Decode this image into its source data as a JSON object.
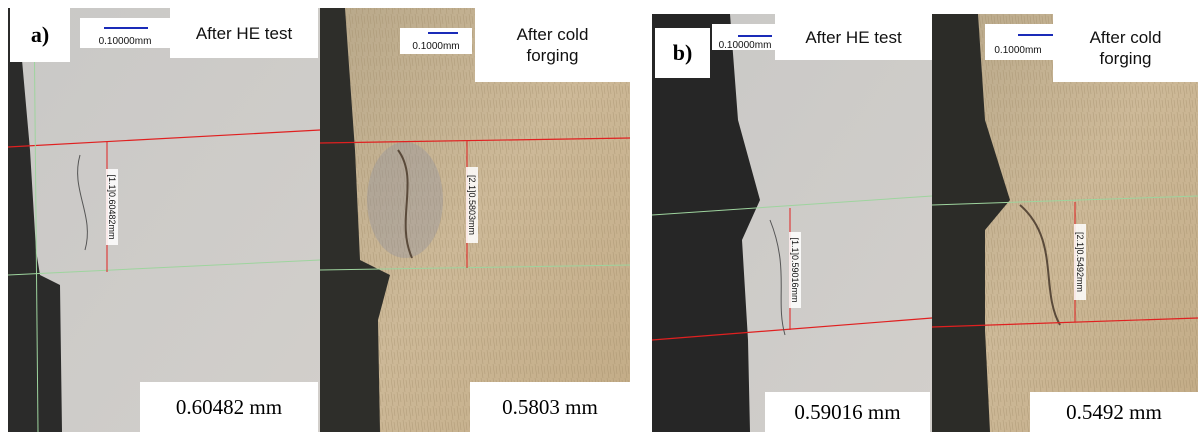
{
  "panels": [
    {
      "label": "a)",
      "images": [
        {
          "caption": "After HE test",
          "scale": "0.10000mm",
          "measurement": "[1.1]0.60482mm",
          "value": "0.60482 mm"
        },
        {
          "caption": "After cold forging",
          "scale": "0.1000mm",
          "measurement": "[2.1]0.5803mm",
          "value": "0.5803 mm"
        }
      ]
    },
    {
      "label": "b)",
      "images": [
        {
          "caption": "After HE test",
          "scale": "0.10000mm",
          "measurement": "[1.1]0.59016mm",
          "value": "0.59016 mm"
        },
        {
          "caption": "After cold forging",
          "scale": "0.1000mm",
          "measurement": "[2.1]0.5492mm",
          "value": "0.5492 mm"
        }
      ]
    }
  ]
}
